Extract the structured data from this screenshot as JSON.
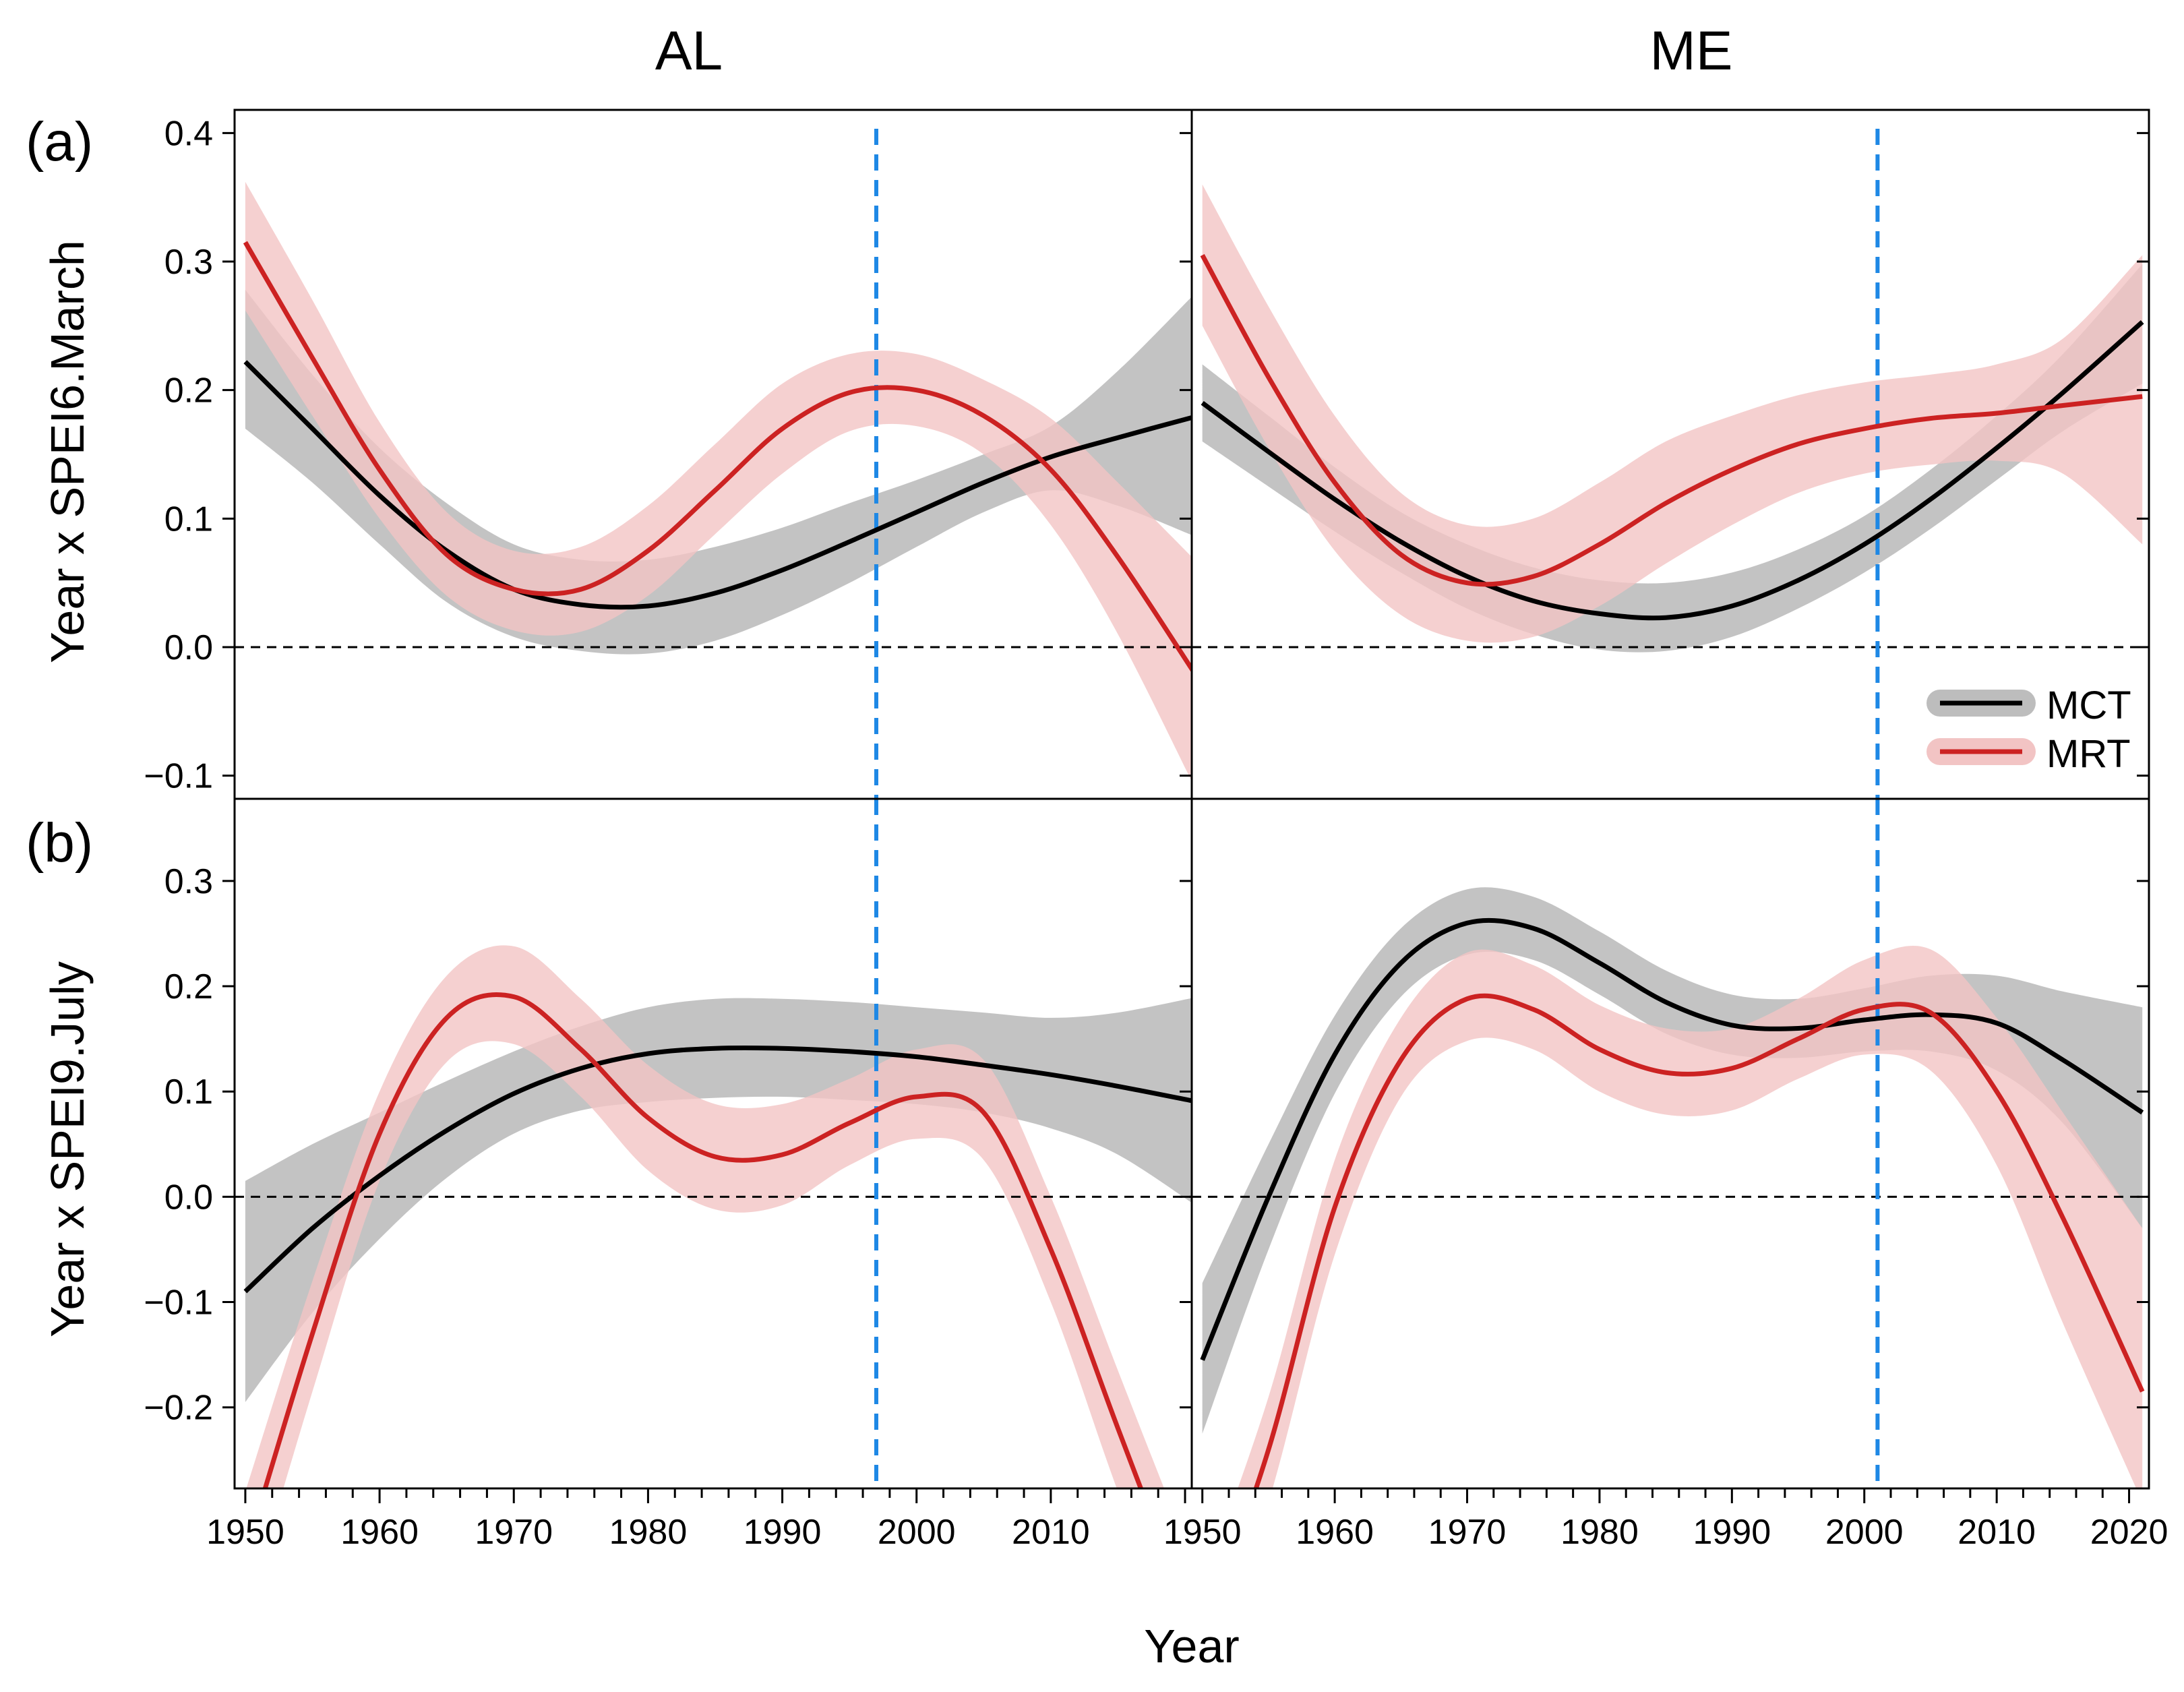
{
  "figure": {
    "column_titles": [
      "AL",
      "ME"
    ],
    "row_labels": [
      "(a)",
      "(b)"
    ],
    "ylabels": [
      "Year x SPEI6.March",
      "Year x SPEI9.July"
    ],
    "xlabel": "Year",
    "legend": {
      "placement": "bottom-right of panel (a) ME",
      "entries": [
        "MCT",
        "MRT"
      ]
    }
  },
  "colors": {
    "MCT_line": "#000000",
    "MCT_band": "#bdbdbd",
    "MRT_line": "#cc2222",
    "MRT_band": "#f2c4c4",
    "threshold_line": "#1e88e5",
    "zero_line": "#000000"
  },
  "chart_data": [
    {
      "panel": "(a) AL",
      "type": "line",
      "x": [
        1950,
        1955,
        1960,
        1965,
        1970,
        1975,
        1980,
        1985,
        1990,
        1995,
        2000,
        2005,
        2010,
        2015,
        2021
      ],
      "xlim": [
        1949.2,
        2020.5
      ],
      "xticks": [
        1950,
        1960,
        1970,
        1980,
        1990,
        2000,
        2010
      ],
      "ylim": [
        -0.118,
        0.418
      ],
      "yticks": [
        -0.1,
        0.0,
        0.1,
        0.2,
        0.3,
        0.4
      ],
      "hline": 0.0,
      "vline": 1997,
      "series": [
        {
          "name": "MCT",
          "values": [
            0.222,
            0.17,
            0.118,
            0.075,
            0.045,
            0.033,
            0.032,
            0.042,
            0.06,
            0.082,
            0.105,
            0.128,
            0.148,
            0.163,
            0.18
          ],
          "lower": [
            0.17,
            0.128,
            0.08,
            0.035,
            0.008,
            -0.003,
            -0.005,
            0.005,
            0.025,
            0.05,
            0.078,
            0.105,
            0.122,
            0.11,
            0.085
          ],
          "upper": [
            0.278,
            0.212,
            0.155,
            0.112,
            0.08,
            0.068,
            0.068,
            0.078,
            0.093,
            0.112,
            0.13,
            0.15,
            0.172,
            0.215,
            0.278
          ]
        },
        {
          "name": "MRT",
          "values": [
            0.315,
            0.225,
            0.138,
            0.072,
            0.045,
            0.045,
            0.075,
            0.122,
            0.17,
            0.198,
            0.2,
            0.18,
            0.138,
            0.07,
            -0.025
          ],
          "lower": [
            0.262,
            0.18,
            0.1,
            0.04,
            0.013,
            0.012,
            0.04,
            0.088,
            0.135,
            0.168,
            0.172,
            0.15,
            0.095,
            0.01,
            -0.115
          ],
          "upper": [
            0.362,
            0.27,
            0.175,
            0.105,
            0.075,
            0.078,
            0.11,
            0.158,
            0.205,
            0.228,
            0.228,
            0.208,
            0.178,
            0.128,
            0.065
          ]
        }
      ]
    },
    {
      "panel": "(a) ME",
      "type": "line",
      "x": [
        1950,
        1955,
        1960,
        1965,
        1970,
        1975,
        1980,
        1985,
        1990,
        1995,
        2000,
        2005,
        2010,
        2015,
        2021
      ],
      "xlim": [
        1949.2,
        2021.5
      ],
      "xticks": [
        1950,
        1960,
        1970,
        1980,
        1990,
        2000,
        2010,
        2020
      ],
      "ylim": [
        -0.118,
        0.418
      ],
      "yticks": [
        -0.1,
        0.0,
        0.1,
        0.2,
        0.3,
        0.4
      ],
      "hline": 0.0,
      "vline": 2001,
      "series": [
        {
          "name": "MCT",
          "values": [
            0.19,
            0.152,
            0.115,
            0.082,
            0.055,
            0.036,
            0.026,
            0.023,
            0.032,
            0.052,
            0.08,
            0.115,
            0.155,
            0.198,
            0.253
          ],
          "lower": [
            0.16,
            0.125,
            0.09,
            0.058,
            0.03,
            0.01,
            -0.002,
            -0.003,
            0.008,
            0.03,
            0.058,
            0.092,
            0.13,
            0.168,
            0.205
          ],
          "upper": [
            0.22,
            0.18,
            0.14,
            0.105,
            0.08,
            0.062,
            0.052,
            0.05,
            0.058,
            0.076,
            0.102,
            0.138,
            0.18,
            0.228,
            0.298
          ]
        },
        {
          "name": "MRT",
          "values": [
            0.305,
            0.21,
            0.128,
            0.072,
            0.05,
            0.055,
            0.08,
            0.112,
            0.138,
            0.158,
            0.17,
            0.178,
            0.182,
            0.188,
            0.195
          ],
          "lower": [
            0.25,
            0.155,
            0.075,
            0.025,
            0.005,
            0.008,
            0.032,
            0.065,
            0.095,
            0.12,
            0.135,
            0.142,
            0.145,
            0.135,
            0.08
          ],
          "upper": [
            0.36,
            0.265,
            0.18,
            0.12,
            0.095,
            0.1,
            0.128,
            0.16,
            0.18,
            0.196,
            0.206,
            0.212,
            0.22,
            0.24,
            0.305
          ]
        }
      ]
    },
    {
      "panel": "(b) AL",
      "type": "line",
      "x": [
        1950,
        1955,
        1960,
        1965,
        1970,
        1975,
        1980,
        1985,
        1990,
        1995,
        2000,
        2005,
        2010,
        2015,
        2021
      ],
      "xlim": [
        1949.2,
        2020.5
      ],
      "xticks": [
        1950,
        1960,
        1970,
        1980,
        1990,
        2000,
        2010
      ],
      "ylim": [
        -0.277,
        0.378
      ],
      "yticks": [
        -0.2,
        -0.1,
        0.0,
        0.1,
        0.2,
        0.3
      ],
      "hline": 0.0,
      "vline": 1997,
      "series": [
        {
          "name": "MCT",
          "values": [
            -0.09,
            -0.03,
            0.02,
            0.063,
            0.098,
            0.122,
            0.136,
            0.141,
            0.141,
            0.138,
            0.133,
            0.125,
            0.116,
            0.105,
            0.09
          ],
          "lower": [
            -0.195,
            -0.11,
            -0.04,
            0.018,
            0.06,
            0.082,
            0.09,
            0.094,
            0.095,
            0.092,
            0.088,
            0.08,
            0.065,
            0.04,
            -0.01
          ],
          "upper": [
            0.015,
            0.05,
            0.08,
            0.11,
            0.138,
            0.162,
            0.18,
            0.188,
            0.188,
            0.185,
            0.18,
            0.175,
            0.17,
            0.175,
            0.19
          ]
        },
        {
          "name": "MRT",
          "values": [
            -0.34,
            -0.13,
            0.06,
            0.17,
            0.19,
            0.14,
            0.075,
            0.038,
            0.04,
            0.07,
            0.095,
            0.08,
            -0.05,
            -0.22,
            -0.42
          ],
          "lower": [
            -0.4,
            -0.185,
            0.015,
            0.128,
            0.145,
            0.095,
            0.025,
            -0.012,
            -0.008,
            0.03,
            0.055,
            0.035,
            -0.1,
            -0.28,
            -0.48
          ],
          "upper": [
            -0.28,
            -0.08,
            0.1,
            0.21,
            0.238,
            0.188,
            0.125,
            0.088,
            0.088,
            0.112,
            0.14,
            0.13,
            0.0,
            -0.165,
            -0.36
          ]
        }
      ]
    },
    {
      "panel": "(b) ME",
      "type": "line",
      "x": [
        1950,
        1955,
        1960,
        1965,
        1970,
        1975,
        1980,
        1985,
        1990,
        1995,
        2000,
        2005,
        2010,
        2015,
        2021
      ],
      "xlim": [
        1949.2,
        2021.5
      ],
      "xticks": [
        1950,
        1960,
        1970,
        1980,
        1990,
        2000,
        2010,
        2020
      ],
      "ylim": [
        -0.277,
        0.378
      ],
      "yticks": [
        -0.2,
        -0.1,
        0.0,
        0.1,
        0.2,
        0.3
      ],
      "hline": 0.0,
      "vline": 2001,
      "series": [
        {
          "name": "MCT",
          "values": [
            -0.155,
            0.0,
            0.135,
            0.222,
            0.26,
            0.255,
            0.222,
            0.185,
            0.163,
            0.16,
            0.168,
            0.173,
            0.165,
            0.13,
            0.08
          ],
          "lower": [
            -0.225,
            -0.05,
            0.098,
            0.19,
            0.23,
            0.225,
            0.192,
            0.155,
            0.135,
            0.132,
            0.138,
            0.138,
            0.12,
            0.07,
            -0.03
          ],
          "upper": [
            -0.082,
            0.05,
            0.172,
            0.255,
            0.292,
            0.285,
            0.252,
            0.215,
            0.192,
            0.188,
            0.198,
            0.21,
            0.21,
            0.195,
            0.18
          ]
        },
        {
          "name": "MRT",
          "values": [
            -0.42,
            -0.24,
            -0.01,
            0.13,
            0.188,
            0.178,
            0.14,
            0.118,
            0.122,
            0.15,
            0.178,
            0.175,
            0.1,
            -0.02,
            -0.185
          ],
          "lower": [
            -0.47,
            -0.29,
            -0.055,
            0.095,
            0.148,
            0.14,
            0.1,
            0.078,
            0.082,
            0.112,
            0.135,
            0.12,
            0.03,
            -0.12,
            -0.29
          ],
          "upper": [
            -0.37,
            -0.19,
            0.035,
            0.17,
            0.232,
            0.22,
            0.182,
            0.16,
            0.16,
            0.188,
            0.225,
            0.235,
            0.17,
            0.08,
            -0.03
          ]
        }
      ]
    }
  ]
}
